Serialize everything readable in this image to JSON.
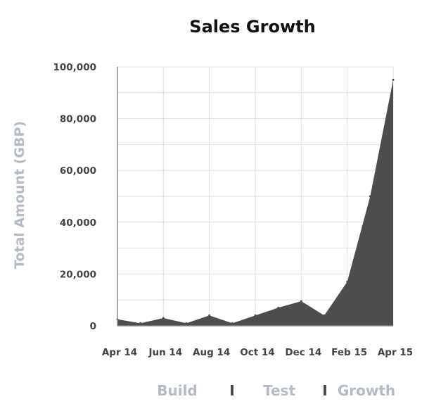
{
  "chart_data": {
    "type": "area",
    "title": "Sales Growth",
    "xlabel": "",
    "ylabel": "Total Amount (GBP)",
    "ylim": [
      0,
      100000
    ],
    "yticks": [
      0,
      20000,
      40000,
      60000,
      80000,
      100000
    ],
    "ytick_labels": [
      "0",
      "20,000",
      "40,000",
      "60,000",
      "80,000",
      "100,000"
    ],
    "xtick_labels": [
      "Apr 14",
      "Jun 14",
      "Aug 14",
      "Oct 14",
      "Dec 14",
      "Feb 15",
      "Apr 15"
    ],
    "categories": [
      "Apr 14",
      "May 14",
      "Jun 14",
      "Jul 14",
      "Aug 14",
      "Sep 14",
      "Oct 14",
      "Nov 14",
      "Dec 14",
      "Jan 15",
      "Feb 15",
      "Mar 15",
      "Apr 15"
    ],
    "values": [
      2500,
      1000,
      3000,
      1000,
      4000,
      1000,
      4000,
      7000,
      9500,
      4000,
      17000,
      50000,
      95000
    ],
    "grid": true,
    "legend": "none",
    "fill_color": "#4d4d4d",
    "phases": [
      "Build",
      "Test",
      "Growth"
    ],
    "phase_separator": "I",
    "phase_color": "#b4bbc4"
  }
}
